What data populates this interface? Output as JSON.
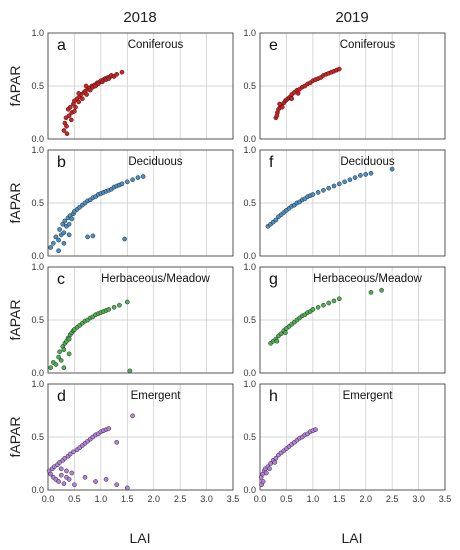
{
  "figure": {
    "column_titles": [
      "2018",
      "2019"
    ],
    "y_label": "fAPAR",
    "x_label": "LAI",
    "y_ticks": [
      "0.0",
      "0.5",
      "1.0"
    ],
    "x_ticks": [
      "0.0",
      "0.5",
      "1.0",
      "1.5",
      "2.0",
      "2.5",
      "3.0",
      "3.5"
    ]
  },
  "chart_data": [
    {
      "type": "scatter",
      "panel": "a",
      "year": "2018",
      "title": "Coniferous",
      "xlabel": "LAI",
      "ylabel": "fAPAR",
      "xlim": [
        0,
        3.5
      ],
      "ylim": [
        0,
        1
      ],
      "color": "#d42020",
      "points": [
        [
          0.3,
          0.08
        ],
        [
          0.32,
          0.15
        ],
        [
          0.34,
          0.2
        ],
        [
          0.35,
          0.12
        ],
        [
          0.38,
          0.28
        ],
        [
          0.4,
          0.22
        ],
        [
          0.42,
          0.3
        ],
        [
          0.45,
          0.25
        ],
        [
          0.48,
          0.33
        ],
        [
          0.5,
          0.36
        ],
        [
          0.52,
          0.3
        ],
        [
          0.55,
          0.38
        ],
        [
          0.58,
          0.35
        ],
        [
          0.6,
          0.4
        ],
        [
          0.62,
          0.42
        ],
        [
          0.65,
          0.38
        ],
        [
          0.68,
          0.44
        ],
        [
          0.7,
          0.45
        ],
        [
          0.73,
          0.42
        ],
        [
          0.75,
          0.47
        ],
        [
          0.78,
          0.48
        ],
        [
          0.8,
          0.46
        ],
        [
          0.83,
          0.5
        ],
        [
          0.85,
          0.49
        ],
        [
          0.88,
          0.51
        ],
        [
          0.9,
          0.5
        ],
        [
          0.93,
          0.53
        ],
        [
          0.95,
          0.52
        ],
        [
          0.98,
          0.54
        ],
        [
          1.0,
          0.55
        ],
        [
          1.03,
          0.54
        ],
        [
          1.05,
          0.56
        ],
        [
          1.08,
          0.57
        ],
        [
          1.1,
          0.56
        ],
        [
          1.13,
          0.58
        ],
        [
          1.15,
          0.57
        ],
        [
          1.18,
          0.59
        ],
        [
          1.2,
          0.6
        ],
        [
          1.25,
          0.59
        ],
        [
          1.3,
          0.61
        ],
        [
          1.4,
          0.63
        ],
        [
          0.36,
          0.05
        ],
        [
          0.44,
          0.18
        ],
        [
          0.5,
          0.26
        ],
        [
          0.58,
          0.43
        ],
        [
          0.72,
          0.5
        ]
      ]
    },
    {
      "type": "scatter",
      "panel": "b",
      "year": "2018",
      "title": "Deciduous",
      "xlabel": "LAI",
      "ylabel": "fAPAR",
      "xlim": [
        0,
        3.5
      ],
      "ylim": [
        0,
        1
      ],
      "color": "#4a8fc4",
      "points": [
        [
          0.05,
          0.08
        ],
        [
          0.1,
          0.12
        ],
        [
          0.15,
          0.18
        ],
        [
          0.2,
          0.15
        ],
        [
          0.22,
          0.25
        ],
        [
          0.25,
          0.2
        ],
        [
          0.28,
          0.3
        ],
        [
          0.3,
          0.22
        ],
        [
          0.32,
          0.33
        ],
        [
          0.35,
          0.28
        ],
        [
          0.38,
          0.36
        ],
        [
          0.4,
          0.3
        ],
        [
          0.42,
          0.38
        ],
        [
          0.45,
          0.35
        ],
        [
          0.48,
          0.4
        ],
        [
          0.5,
          0.42
        ],
        [
          0.55,
          0.44
        ],
        [
          0.6,
          0.46
        ],
        [
          0.65,
          0.48
        ],
        [
          0.7,
          0.5
        ],
        [
          0.75,
          0.52
        ],
        [
          0.8,
          0.53
        ],
        [
          0.85,
          0.55
        ],
        [
          0.9,
          0.56
        ],
        [
          0.95,
          0.58
        ],
        [
          1.0,
          0.59
        ],
        [
          1.05,
          0.6
        ],
        [
          1.1,
          0.61
        ],
        [
          1.15,
          0.62
        ],
        [
          1.2,
          0.63
        ],
        [
          1.25,
          0.65
        ],
        [
          1.3,
          0.66
        ],
        [
          1.35,
          0.67
        ],
        [
          1.4,
          0.68
        ],
        [
          1.5,
          0.7
        ],
        [
          1.6,
          0.72
        ],
        [
          1.7,
          0.74
        ],
        [
          1.8,
          0.75
        ],
        [
          0.75,
          0.18
        ],
        [
          0.85,
          0.19
        ],
        [
          1.45,
          0.16
        ],
        [
          0.3,
          0.12
        ],
        [
          0.2,
          0.05
        ],
        [
          0.4,
          0.2
        ]
      ]
    },
    {
      "type": "scatter",
      "panel": "c",
      "year": "2018",
      "title": "Herbaceous/Meadow",
      "xlabel": "LAI",
      "ylabel": "fAPAR",
      "xlim": [
        0,
        3.5
      ],
      "ylim": [
        0,
        1
      ],
      "color": "#4caf50",
      "points": [
        [
          0.05,
          0.05
        ],
        [
          0.1,
          0.1
        ],
        [
          0.15,
          0.08
        ],
        [
          0.2,
          0.15
        ],
        [
          0.22,
          0.2
        ],
        [
          0.25,
          0.12
        ],
        [
          0.28,
          0.25
        ],
        [
          0.3,
          0.22
        ],
        [
          0.32,
          0.28
        ],
        [
          0.35,
          0.3
        ],
        [
          0.38,
          0.33
        ],
        [
          0.4,
          0.32
        ],
        [
          0.42,
          0.36
        ],
        [
          0.45,
          0.38
        ],
        [
          0.48,
          0.4
        ],
        [
          0.5,
          0.41
        ],
        [
          0.55,
          0.43
        ],
        [
          0.6,
          0.45
        ],
        [
          0.65,
          0.47
        ],
        [
          0.7,
          0.49
        ],
        [
          0.75,
          0.5
        ],
        [
          0.8,
          0.52
        ],
        [
          0.85,
          0.53
        ],
        [
          0.9,
          0.55
        ],
        [
          0.95,
          0.56
        ],
        [
          1.0,
          0.57
        ],
        [
          1.05,
          0.58
        ],
        [
          1.1,
          0.59
        ],
        [
          1.15,
          0.6
        ],
        [
          1.25,
          0.62
        ],
        [
          1.35,
          0.64
        ],
        [
          1.5,
          0.67
        ],
        [
          1.55,
          0.02
        ],
        [
          0.3,
          0.05
        ],
        [
          0.4,
          0.18
        ]
      ]
    },
    {
      "type": "scatter",
      "panel": "d",
      "year": "2018",
      "title": "Emergent",
      "xlabel": "LAI",
      "ylabel": "fAPAR",
      "xlim": [
        0,
        3.5
      ],
      "ylim": [
        0,
        1
      ],
      "color": "#b57edc",
      "points": [
        [
          0.02,
          0.18
        ],
        [
          0.05,
          0.15
        ],
        [
          0.08,
          0.2
        ],
        [
          0.1,
          0.12
        ],
        [
          0.12,
          0.22
        ],
        [
          0.15,
          0.1
        ],
        [
          0.18,
          0.24
        ],
        [
          0.2,
          0.08
        ],
        [
          0.22,
          0.26
        ],
        [
          0.25,
          0.14
        ],
        [
          0.28,
          0.28
        ],
        [
          0.3,
          0.06
        ],
        [
          0.32,
          0.3
        ],
        [
          0.35,
          0.12
        ],
        [
          0.38,
          0.32
        ],
        [
          0.4,
          0.1
        ],
        [
          0.42,
          0.34
        ],
        [
          0.45,
          0.16
        ],
        [
          0.48,
          0.36
        ],
        [
          0.5,
          0.05
        ],
        [
          0.55,
          0.38
        ],
        [
          0.6,
          0.4
        ],
        [
          0.65,
          0.42
        ],
        [
          0.7,
          0.44
        ],
        [
          0.75,
          0.46
        ],
        [
          0.8,
          0.48
        ],
        [
          0.85,
          0.5
        ],
        [
          0.9,
          0.52
        ],
        [
          0.95,
          0.53
        ],
        [
          1.0,
          0.55
        ],
        [
          1.05,
          0.56
        ],
        [
          1.1,
          0.57
        ],
        [
          1.15,
          0.58
        ],
        [
          0.7,
          0.12
        ],
        [
          0.9,
          0.08
        ],
        [
          1.1,
          0.1
        ],
        [
          1.3,
          0.05
        ],
        [
          1.5,
          0.02
        ],
        [
          1.6,
          0.7
        ],
        [
          1.3,
          0.45
        ],
        [
          0.25,
          0.2
        ],
        [
          0.35,
          0.18
        ]
      ]
    },
    {
      "type": "scatter",
      "panel": "e",
      "year": "2019",
      "title": "Coniferous",
      "xlabel": "LAI",
      "ylabel": "fAPAR",
      "xlim": [
        0,
        3.5
      ],
      "ylim": [
        0,
        1
      ],
      "color": "#d42020",
      "points": [
        [
          0.3,
          0.2
        ],
        [
          0.33,
          0.25
        ],
        [
          0.35,
          0.28
        ],
        [
          0.38,
          0.3
        ],
        [
          0.4,
          0.32
        ],
        [
          0.42,
          0.3
        ],
        [
          0.45,
          0.34
        ],
        [
          0.48,
          0.36
        ],
        [
          0.5,
          0.37
        ],
        [
          0.53,
          0.38
        ],
        [
          0.55,
          0.39
        ],
        [
          0.58,
          0.4
        ],
        [
          0.6,
          0.42
        ],
        [
          0.65,
          0.44
        ],
        [
          0.7,
          0.46
        ],
        [
          0.75,
          0.47
        ],
        [
          0.8,
          0.49
        ],
        [
          0.85,
          0.5
        ],
        [
          0.9,
          0.52
        ],
        [
          0.95,
          0.53
        ],
        [
          1.0,
          0.55
        ],
        [
          1.05,
          0.56
        ],
        [
          1.1,
          0.57
        ],
        [
          1.15,
          0.58
        ],
        [
          1.2,
          0.6
        ],
        [
          1.25,
          0.61
        ],
        [
          1.3,
          0.62
        ],
        [
          1.35,
          0.63
        ],
        [
          1.4,
          0.64
        ],
        [
          1.45,
          0.65
        ],
        [
          1.5,
          0.66
        ],
        [
          0.32,
          0.22
        ],
        [
          0.37,
          0.33
        ],
        [
          0.6,
          0.38
        ],
        [
          0.72,
          0.43
        ]
      ]
    },
    {
      "type": "scatter",
      "panel": "f",
      "year": "2019",
      "title": "Deciduous",
      "xlabel": "LAI",
      "ylabel": "fAPAR",
      "xlim": [
        0,
        3.5
      ],
      "ylim": [
        0,
        1
      ],
      "color": "#4a8fc4",
      "points": [
        [
          0.15,
          0.28
        ],
        [
          0.2,
          0.3
        ],
        [
          0.25,
          0.32
        ],
        [
          0.3,
          0.34
        ],
        [
          0.35,
          0.37
        ],
        [
          0.4,
          0.39
        ],
        [
          0.45,
          0.41
        ],
        [
          0.5,
          0.43
        ],
        [
          0.55,
          0.45
        ],
        [
          0.6,
          0.47
        ],
        [
          0.65,
          0.48
        ],
        [
          0.7,
          0.5
        ],
        [
          0.75,
          0.51
        ],
        [
          0.8,
          0.53
        ],
        [
          0.85,
          0.54
        ],
        [
          0.9,
          0.56
        ],
        [
          0.95,
          0.57
        ],
        [
          1.0,
          0.58
        ],
        [
          1.1,
          0.6
        ],
        [
          1.2,
          0.62
        ],
        [
          1.3,
          0.64
        ],
        [
          1.4,
          0.66
        ],
        [
          1.5,
          0.68
        ],
        [
          1.6,
          0.7
        ],
        [
          1.7,
          0.72
        ],
        [
          1.8,
          0.74
        ],
        [
          1.9,
          0.76
        ],
        [
          2.0,
          0.77
        ],
        [
          2.1,
          0.78
        ],
        [
          2.5,
          0.82
        ]
      ]
    },
    {
      "type": "scatter",
      "panel": "g",
      "year": "2019",
      "title": "Herbaceous/Meadow",
      "xlabel": "LAI",
      "ylabel": "fAPAR",
      "xlim": [
        0,
        3.5
      ],
      "ylim": [
        0,
        1
      ],
      "color": "#4caf50",
      "points": [
        [
          0.2,
          0.28
        ],
        [
          0.25,
          0.3
        ],
        [
          0.3,
          0.32
        ],
        [
          0.35,
          0.35
        ],
        [
          0.4,
          0.37
        ],
        [
          0.45,
          0.4
        ],
        [
          0.5,
          0.42
        ],
        [
          0.55,
          0.44
        ],
        [
          0.6,
          0.46
        ],
        [
          0.65,
          0.48
        ],
        [
          0.7,
          0.5
        ],
        [
          0.75,
          0.52
        ],
        [
          0.8,
          0.54
        ],
        [
          0.85,
          0.55
        ],
        [
          0.9,
          0.57
        ],
        [
          0.95,
          0.58
        ],
        [
          1.0,
          0.6
        ],
        [
          1.1,
          0.62
        ],
        [
          1.2,
          0.64
        ],
        [
          1.3,
          0.66
        ],
        [
          1.4,
          0.68
        ],
        [
          1.5,
          0.7
        ],
        [
          2.1,
          0.76
        ],
        [
          2.3,
          0.78
        ],
        [
          0.32,
          0.3
        ],
        [
          0.48,
          0.38
        ]
      ]
    },
    {
      "type": "scatter",
      "panel": "h",
      "year": "2019",
      "title": "Emergent",
      "xlabel": "LAI",
      "ylabel": "fAPAR",
      "xlim": [
        0,
        3.5
      ],
      "ylim": [
        0,
        1
      ],
      "color": "#b57edc",
      "points": [
        [
          0.02,
          0.12
        ],
        [
          0.05,
          0.15
        ],
        [
          0.08,
          0.18
        ],
        [
          0.1,
          0.2
        ],
        [
          0.12,
          0.16
        ],
        [
          0.15,
          0.22
        ],
        [
          0.2,
          0.25
        ],
        [
          0.25,
          0.28
        ],
        [
          0.3,
          0.3
        ],
        [
          0.35,
          0.33
        ],
        [
          0.4,
          0.35
        ],
        [
          0.45,
          0.37
        ],
        [
          0.5,
          0.39
        ],
        [
          0.55,
          0.41
        ],
        [
          0.6,
          0.43
        ],
        [
          0.65,
          0.45
        ],
        [
          0.7,
          0.47
        ],
        [
          0.75,
          0.49
        ],
        [
          0.8,
          0.5
        ],
        [
          0.85,
          0.52
        ],
        [
          0.9,
          0.53
        ],
        [
          0.95,
          0.55
        ],
        [
          1.0,
          0.56
        ],
        [
          1.05,
          0.57
        ],
        [
          0.03,
          0.05
        ],
        [
          0.06,
          0.08
        ],
        [
          0.18,
          0.2
        ],
        [
          0.28,
          0.26
        ]
      ]
    }
  ]
}
